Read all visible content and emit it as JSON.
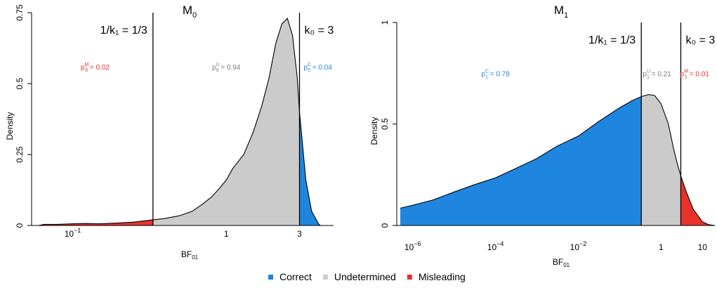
{
  "chart_data": [
    {
      "type": "area",
      "title": "M",
      "title_sub": "0",
      "xlabel": "BF",
      "xlabel_sub": "01",
      "ylabel": "Density",
      "x_scale": "log",
      "xlim": [
        0.06,
        5.0
      ],
      "ylim": [
        0,
        0.75
      ],
      "x_ticks": [
        {
          "value": 0.1,
          "base": "10",
          "exp": "−1"
        },
        {
          "value": 1,
          "base": "1",
          "exp": ""
        },
        {
          "value": 3,
          "base": "3",
          "exp": ""
        }
      ],
      "y_ticks": [
        {
          "value": 0,
          "label": "0"
        },
        {
          "value": 0.25,
          "label": "0.25"
        },
        {
          "value": 0.5,
          "label": "0.5"
        },
        {
          "value": 0.75,
          "label": "0.75"
        }
      ],
      "thresholds": [
        {
          "value": 0.3333,
          "label": "1/k₁ = 1/3"
        },
        {
          "value": 3,
          "label": "k₀ = 3"
        }
      ],
      "regions": [
        {
          "name": "Misleading",
          "from": 0.06,
          "to": 0.3333,
          "color": "#e8312b"
        },
        {
          "name": "Undetermined",
          "from": 0.3333,
          "to": 3,
          "color": "#cbcbcb"
        },
        {
          "name": "Correct",
          "from": 3,
          "to": 5.0,
          "color": "#1f86e0"
        }
      ],
      "annotations": [
        {
          "x": 0.14,
          "y": 0.56,
          "base": "p",
          "sub": "0",
          "sup": "M",
          "value": "= 0.02",
          "color": "#e8312b"
        },
        {
          "x": 1.0,
          "y": 0.56,
          "base": "p",
          "sub": "0",
          "sup": "U",
          "value": "= 0.94",
          "color": "#7a7a7a"
        },
        {
          "x": 3.95,
          "y": 0.56,
          "base": "p",
          "sub": "0",
          "sup": "C",
          "value": "= 0.04",
          "color": "#1f86e0"
        }
      ],
      "density": {
        "x": [
          0.06,
          0.065,
          0.08,
          0.1,
          0.12,
          0.15,
          0.2,
          0.25,
          0.3333,
          0.4,
          0.5,
          0.6,
          0.7,
          0.8,
          0.9,
          1.0,
          1.1,
          1.3,
          1.5,
          1.7,
          1.9,
          2.1,
          2.3,
          2.5,
          2.7,
          2.9,
          3.0,
          3.3,
          3.6,
          4.0,
          4.1
        ],
        "y": [
          0,
          0.004,
          0.004,
          0.006,
          0.007,
          0.006,
          0.009,
          0.012,
          0.02,
          0.025,
          0.035,
          0.05,
          0.075,
          0.1,
          0.13,
          0.16,
          0.2,
          0.25,
          0.33,
          0.42,
          0.52,
          0.64,
          0.71,
          0.73,
          0.67,
          0.52,
          0.4,
          0.16,
          0.05,
          0.005,
          0
        ]
      }
    },
    {
      "type": "area",
      "title": "M",
      "title_sub": "1",
      "xlabel": "BF",
      "xlabel_sub": "01",
      "ylabel": "Density",
      "x_scale": "log",
      "xlim": [
        5e-07,
        20
      ],
      "ylim": [
        0,
        1.0
      ],
      "x_ticks": [
        {
          "value": 1e-06,
          "base": "10",
          "exp": "−6"
        },
        {
          "value": 0.0001,
          "base": "10",
          "exp": "−4"
        },
        {
          "value": 0.01,
          "base": "10",
          "exp": "−2"
        },
        {
          "value": 1,
          "base": "1",
          "exp": ""
        },
        {
          "value": 10,
          "base": "10",
          "exp": ""
        }
      ],
      "y_ticks": [
        {
          "value": 0,
          "label": "0"
        },
        {
          "value": 0.5,
          "label": "0.5"
        },
        {
          "value": 1,
          "label": "1"
        }
      ],
      "thresholds": [
        {
          "value": 0.3333,
          "label": "1/k₁ = 1/3"
        },
        {
          "value": 3,
          "label": "k₀ = 3"
        }
      ],
      "regions": [
        {
          "name": "Correct",
          "from": 5e-07,
          "to": 0.3333,
          "color": "#1f86e0"
        },
        {
          "name": "Undetermined",
          "from": 0.3333,
          "to": 3,
          "color": "#cbcbcb"
        },
        {
          "name": "Misleading",
          "from": 3,
          "to": 20,
          "color": "#e8312b"
        }
      ],
      "annotations": [
        {
          "x": 0.0001,
          "y": 0.75,
          "base": "p",
          "sub": "1",
          "sup": "C",
          "value": "= 0.78",
          "color": "#1f86e0"
        },
        {
          "x": 0.8,
          "y": 0.75,
          "base": "p",
          "sub": "1",
          "sup": "U",
          "value": "= 0.21",
          "color": "#7a7a7a"
        },
        {
          "x": 6.5,
          "y": 0.75,
          "base": "p",
          "sub": "1",
          "sup": "M",
          "value": "= 0.01",
          "color": "#e8312b"
        }
      ],
      "density": {
        "x": [
          5e-07,
          1e-06,
          3e-06,
          1e-05,
          3e-05,
          0.0001,
          0.0003,
          0.001,
          0.003,
          0.01,
          0.03,
          0.1,
          0.2,
          0.3333,
          0.5,
          0.7,
          1.0,
          1.5,
          2.0,
          2.5,
          3.0,
          4.0,
          6.0,
          10.0,
          14.0,
          20.0
        ],
        "y": [
          0.085,
          0.1,
          0.125,
          0.165,
          0.2,
          0.235,
          0.28,
          0.33,
          0.39,
          0.44,
          0.51,
          0.58,
          0.615,
          0.635,
          0.645,
          0.64,
          0.6,
          0.5,
          0.38,
          0.3,
          0.245,
          0.17,
          0.08,
          0.018,
          0.004,
          0
        ]
      }
    }
  ],
  "legend": [
    {
      "label": "Correct",
      "color": "#1f86e0"
    },
    {
      "label": "Undetermined",
      "color": "#cbcbcb"
    },
    {
      "label": "Misleading",
      "color": "#e8312b"
    }
  ]
}
